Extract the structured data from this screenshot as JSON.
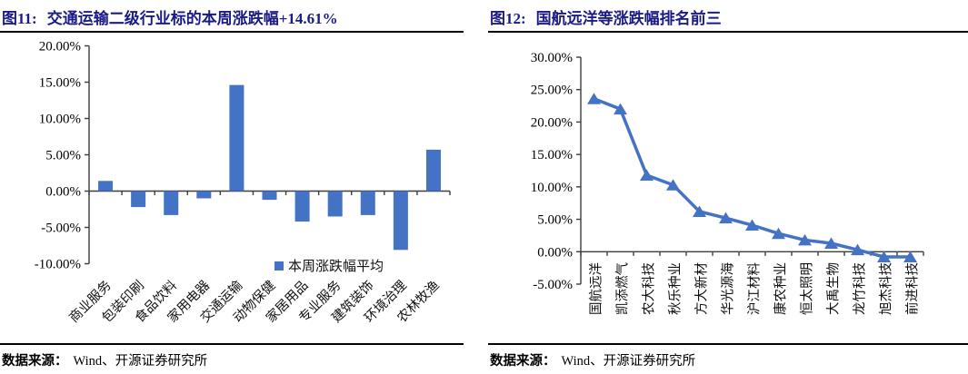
{
  "figures": [
    {
      "fig_label": "图11:",
      "caption": "交通运输二级行业标的本周涨跌幅+14.61%",
      "source_label": "数据来源：",
      "source_text": "Wind、开源证券研究所"
    },
    {
      "fig_label": "图12:",
      "caption": "国航远洋等涨跌幅排名前三",
      "source_label": "数据来源：",
      "source_text": "Wind、开源证券研究所"
    }
  ],
  "colors": {
    "series_blue": "#4472C4",
    "title_navy": "#1b1b86",
    "axis_line": "#3d3d3d"
  },
  "chart_data": [
    {
      "type": "bar",
      "title": "交通运输二级行业标的本周涨跌幅+14.61%",
      "legend": "本周涨跌幅平均",
      "legend_position": "bottom-right",
      "categories": [
        "商业服务",
        "包装印刷",
        "食品饮料",
        "家用电器",
        "交通运输",
        "动物保健",
        "家居用品",
        "专业服务",
        "建筑装饰",
        "环境治理",
        "农林牧渔"
      ],
      "values": [
        1.4,
        -2.2,
        -3.3,
        -1.0,
        14.61,
        -1.2,
        -4.2,
        -3.5,
        -3.3,
        -8.1,
        5.7
      ],
      "unit": "%",
      "ylim": [
        -10,
        20
      ],
      "ytick_step": 5,
      "yticks": [
        "20.00%",
        "15.00%",
        "10.00%",
        "5.00%",
        "0.00%",
        "-5.00%",
        "-10.00%"
      ],
      "xlabel": "",
      "ylabel": "",
      "grid": false,
      "bar_color": "#4472C4",
      "x_tick_label_rotation": -45
    },
    {
      "type": "line",
      "marker": "triangle-up",
      "title": "国航远洋等涨跌幅排名前三",
      "categories": [
        "国航远洋",
        "凯添燃气",
        "农大科技",
        "秋乐种业",
        "方大新材",
        "华光源海",
        "沪江材料",
        "康农种业",
        "恒太照明",
        "大禹生物",
        "龙竹科技",
        "旭杰科技",
        "前进科技"
      ],
      "values": [
        23.6,
        22.0,
        11.8,
        10.3,
        6.2,
        5.2,
        4.1,
        2.8,
        1.8,
        1.3,
        0.3,
        -0.8,
        -0.8
      ],
      "unit": "%",
      "ylim": [
        -5,
        30
      ],
      "ytick_step": 5,
      "yticks": [
        "30.00%",
        "25.00%",
        "20.00%",
        "15.00%",
        "10.00%",
        "5.00%",
        "0.00%",
        "-5.00%"
      ],
      "xlabel": "",
      "ylabel": "",
      "grid": false,
      "line_color": "#4472C4",
      "x_tick_label_rotation": -90
    }
  ]
}
